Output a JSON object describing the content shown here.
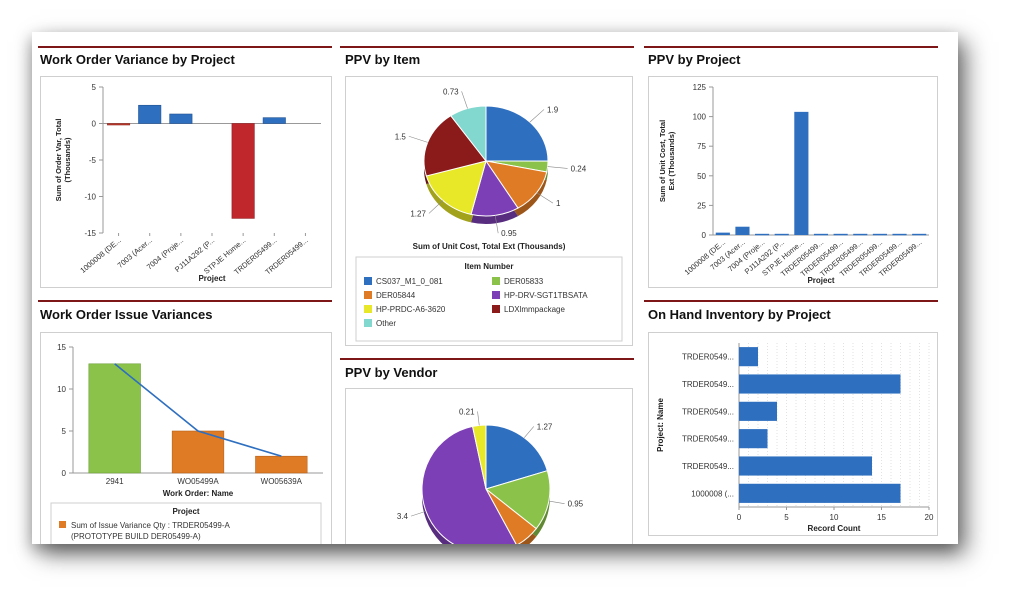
{
  "panels": {
    "wov": {
      "title": "Work Order Variance by Project",
      "chart_data": {
        "type": "bar",
        "categories": [
          "1000008 (DE...",
          "7003 (Acer...",
          "7004 (Proje...",
          "PJ11A292 (P...",
          "STPJE Home...",
          "TRDER05499...",
          "TRDER05499..."
        ],
        "values": [
          -0.2,
          2.5,
          1.3,
          0,
          -13,
          0.8,
          0
        ],
        "bar_colors": [
          "#c0392b",
          "#2e6fc0",
          "#2e6fc0",
          "#2e6fc0",
          "#c0272d",
          "#2e6fc0",
          "#2e6fc0"
        ],
        "xlabel": "Project",
        "ylabel_lines": [
          "Sum of Order Var, Total",
          "(Thousands)"
        ],
        "ylim": [
          -15,
          5
        ],
        "yticks": [
          5,
          0,
          -5,
          -10,
          -15
        ]
      }
    },
    "ppv_item": {
      "title": "PPV by Item",
      "chart_data": {
        "type": "pie",
        "slices": [
          {
            "name": "CS037_M1_0_081",
            "value": 1.9,
            "color": "#2e6fc0"
          },
          {
            "name": "DER05833",
            "value": 0.24,
            "color": "#8bc34a"
          },
          {
            "name": "DER05844",
            "value": 1,
            "color": "#e07b25"
          },
          {
            "name": "HP-DRV-SGT1TBSATA",
            "value": 0.95,
            "color": "#7d3fb5"
          },
          {
            "name": "HP-PRDC-A6-3620",
            "value": 1.27,
            "color": "#e8e829"
          },
          {
            "name": "LDXlmmpackage",
            "value": 1.5,
            "color": "#8b1a1a"
          },
          {
            "name": "Other",
            "value": 0.73,
            "color": "#82d7cf"
          }
        ],
        "xlabel": "Sum of Unit Cost, Total Ext (Thousands)",
        "legend_title": "Item Number"
      }
    },
    "ppv_project": {
      "title": "PPV by Project",
      "chart_data": {
        "type": "bar",
        "categories": [
          "1000008 (DE...",
          "7003 (Acer...",
          "7004 (Proje...",
          "PJ11A292 (P...",
          "STPJE Home...",
          "TRDER05499...",
          "TRDER05499...",
          "TRDER05499...",
          "TRDER05499...",
          "TRDER05499...",
          "TRDER05499..."
        ],
        "values": [
          2,
          7,
          1,
          1,
          104,
          1,
          1,
          1,
          1,
          1,
          1
        ],
        "xlabel": "Project",
        "ylabel_lines": [
          "Sum of Unit Cost, Total",
          "Ext (Thousands)"
        ],
        "ylim": [
          0,
          125
        ],
        "yticks": [
          125,
          100,
          75,
          50,
          25,
          0
        ]
      }
    },
    "woiv": {
      "title": "Work Order Issue Variances",
      "chart_data": {
        "type": "bar",
        "categories": [
          "2941",
          "WO05499A",
          "WO05639A"
        ],
        "values": [
          13,
          5,
          2
        ],
        "bar_colors": [
          "#8bc34a",
          "#e07b25",
          "#e07b25"
        ],
        "line_values": [
          13,
          5,
          2
        ],
        "line_color": "#2e6fc0",
        "xlabel": "Work Order: Name",
        "ylim": [
          0,
          15
        ],
        "yticks": [
          15,
          10,
          5,
          0
        ],
        "legend_title": "Project",
        "legend_lines": [
          "Sum of Issue Variance Qty : TRDER05499-A",
          "(PROTOTYPE BUILD DER05499-A)"
        ]
      }
    },
    "ppv_vendor": {
      "title": "PPV by Vendor",
      "chart_data": {
        "type": "pie",
        "slices": [
          {
            "name": "",
            "value": 1.27,
            "color": "#2e6fc0",
            "label": "1.27"
          },
          {
            "name": "",
            "value": 0.95,
            "color": "#8bc34a",
            "label": "0.95"
          },
          {
            "name": "",
            "value": 0.4,
            "color": "#e07b25",
            "label": ""
          },
          {
            "name": "",
            "value": 3.4,
            "color": "#7d3fb5",
            "label": "3.4"
          },
          {
            "name": "",
            "value": 0.21,
            "color": "#e8e829",
            "label": "0.21"
          }
        ]
      }
    },
    "onhand": {
      "title": "On Hand Inventory by Project",
      "chart_data": {
        "type": "bar",
        "orientation": "horizontal",
        "categories": [
          "TRDER0549...",
          "TRDER0549...",
          "TRDER0549...",
          "TRDER0549...",
          "TRDER0549...",
          "1000008 (..."
        ],
        "values": [
          2,
          17,
          4,
          3,
          14,
          17
        ],
        "xlabel": "Record Count",
        "ylabel": "Project: Name",
        "xlim": [
          0,
          20
        ],
        "xticks": [
          0,
          5,
          10,
          15,
          20
        ]
      }
    }
  }
}
